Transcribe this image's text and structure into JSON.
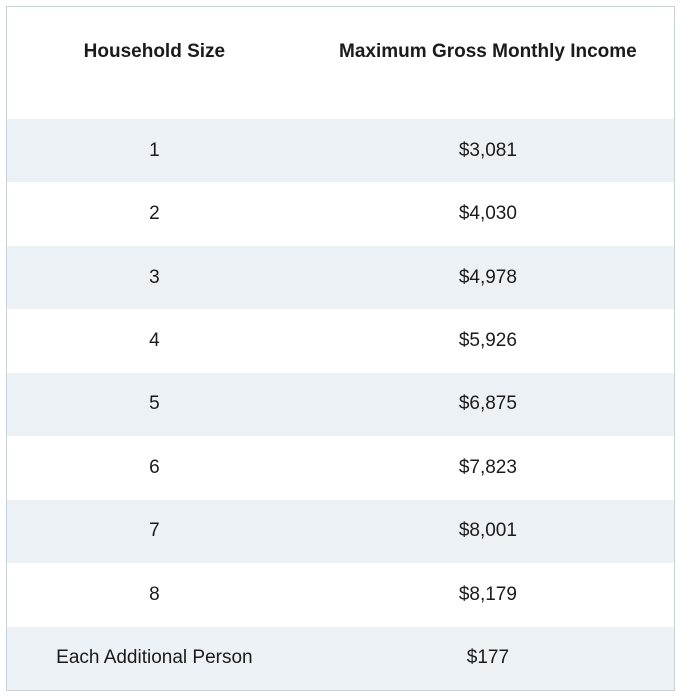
{
  "chart_data": {
    "type": "table",
    "title": "",
    "columns": [
      "Household Size",
      "Maximum Gross Monthly Income"
    ],
    "rows": [
      [
        "1",
        "$3,081"
      ],
      [
        "2",
        "$4,030"
      ],
      [
        "3",
        "$4,978"
      ],
      [
        "4",
        "$5,926"
      ],
      [
        "5",
        "$6,875"
      ],
      [
        "6",
        "$7,823"
      ],
      [
        "7",
        "$8,001"
      ],
      [
        "8",
        "$8,179"
      ],
      [
        "Each Additional Person",
        "$177"
      ]
    ],
    "layout_hints": {
      "striped_rows": "odd rows shaded",
      "alignment": "all cells centered"
    }
  },
  "colors": {
    "stripe_row_background": "#ecf1f6",
    "outer_border": "#c5d2da",
    "text": "#1b1b1b",
    "background": "#ffffff"
  }
}
